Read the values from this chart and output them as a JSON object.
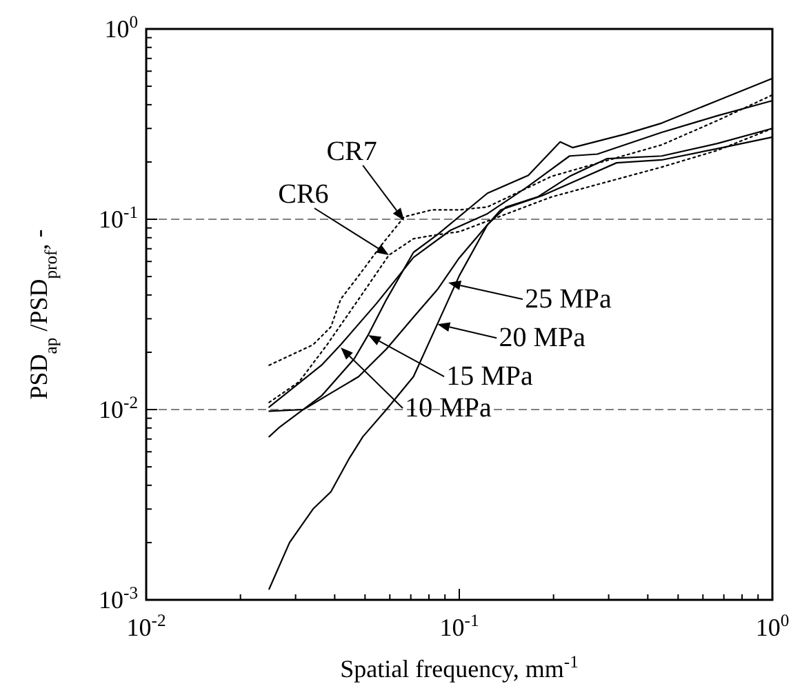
{
  "chart_data": {
    "type": "line",
    "xlabel": "Spatial frequency, mm$^{-1}$",
    "ylabel": "PSD$_{ap}$ /PSD$_{prof}$, -",
    "log": "xy",
    "xlim": [
      0.01,
      1
    ],
    "ylim": [
      0.001,
      1
    ],
    "xticks": [
      {
        "value": 0.01,
        "label": "10$^{-2}$"
      },
      {
        "value": 0.1,
        "label": "10$^{-1}$"
      },
      {
        "value": 1,
        "label": "10$^{0}$"
      }
    ],
    "yticks": [
      {
        "value": 0.001,
        "label": "10$^{-3}$"
      },
      {
        "value": 0.01,
        "label": "10$^{-2}$"
      },
      {
        "value": 0.1,
        "label": "10$^{-1}$"
      },
      {
        "value": 1,
        "label": "10$^{0}$"
      }
    ],
    "grid": false,
    "marker": "none",
    "ref_lines": [
      {
        "axis": "y",
        "value": 0.1,
        "color": "#808080",
        "line_style": "dashed"
      },
      {
        "axis": "y",
        "value": 0.01,
        "color": "#808080",
        "line_style": "dashed"
      }
    ],
    "series": [
      {
        "color": "#000000",
        "line_style": "solid",
        "x": [
          0.0247,
          0.0363,
          0.0418,
          0.0544,
          0.0714,
          0.0937,
          0.123,
          0.166,
          0.225,
          0.276,
          0.443,
          0.667,
          1
        ],
        "values": [
          0.0103,
          0.0171,
          0.0219,
          0.0361,
          0.063,
          0.0875,
          0.107,
          0.149,
          0.215,
          0.22,
          0.286,
          0.35,
          0.42
        ]
      },
      {
        "color": "#000000",
        "line_style": "solid",
        "x": [
          0.0247,
          0.0267,
          0.0363,
          0.0462,
          0.0512,
          0.0585,
          0.0714,
          0.0851,
          0.123,
          0.166,
          0.21,
          0.23,
          0.338,
          0.443,
          0.667,
          1
        ],
        "values": [
          0.0072,
          0.0081,
          0.0118,
          0.0185,
          0.0247,
          0.0378,
          0.067,
          0.083,
          0.137,
          0.17,
          0.255,
          0.238,
          0.28,
          0.32,
          0.42,
          0.55
        ]
      },
      {
        "color": "#000000",
        "line_style": "solid",
        "x": [
          0.0247,
          0.0287,
          0.0341,
          0.0389,
          0.0444,
          0.0492,
          0.0585,
          0.0714,
          0.0851,
          0.1,
          0.123,
          0.141,
          0.178,
          0.225,
          0.296,
          0.443,
          0.667,
          1
        ],
        "values": [
          0.00114,
          0.002,
          0.003,
          0.0037,
          0.0055,
          0.0072,
          0.01,
          0.0149,
          0.0281,
          0.0505,
          0.0935,
          0.116,
          0.131,
          0.168,
          0.208,
          0.215,
          0.25,
          0.3
        ]
      },
      {
        "color": "#000000",
        "line_style": "solid",
        "x": [
          0.0247,
          0.0318,
          0.0389,
          0.0477,
          0.0585,
          0.0714,
          0.0851,
          0.1,
          0.123,
          0.1355,
          0.184,
          0.225,
          0.318,
          0.443,
          0.667,
          1
        ],
        "values": [
          0.0098,
          0.01,
          0.0122,
          0.0149,
          0.0208,
          0.0306,
          0.0427,
          0.0627,
          0.0935,
          0.112,
          0.133,
          0.154,
          0.198,
          0.205,
          0.235,
          0.27
        ]
      },
      {
        "color": "#000000",
        "line_style": "dotted",
        "x": [
          0.0247,
          0.0341,
          0.0389,
          0.0418,
          0.0477,
          0.0567,
          0.0667,
          0.0817,
          0.1,
          0.123,
          0.197,
          0.443,
          0.667,
          1
        ],
        "values": [
          0.0171,
          0.0219,
          0.0272,
          0.038,
          0.0505,
          0.074,
          0.103,
          0.112,
          0.112,
          0.116,
          0.168,
          0.246,
          0.33,
          0.45
        ]
      },
      {
        "color": "#000000",
        "line_style": "dotted",
        "x": [
          0.0247,
          0.0308,
          0.0378,
          0.0477,
          0.0596,
          0.0714,
          0.0851,
          0.1,
          0.197,
          0.443,
          0.667,
          1
        ],
        "values": [
          0.0109,
          0.014,
          0.0219,
          0.038,
          0.0648,
          0.079,
          0.083,
          0.086,
          0.131,
          0.188,
          0.23,
          0.3
        ]
      }
    ],
    "annotations": [
      {
        "text": "CR7",
        "x": 0.0667,
        "y": 0.0984
      },
      {
        "text": "CR6",
        "x": 0.0596,
        "y": 0.0648
      },
      {
        "text": "25 MPa",
        "x": 0.0922,
        "y": 0.0464
      },
      {
        "text": "20 MPa",
        "x": 0.0851,
        "y": 0.0281
      },
      {
        "text": "15 MPa",
        "x": 0.0512,
        "y": 0.0246
      },
      {
        "text": "10 MPa",
        "x": 0.0418,
        "y": 0.0212
      }
    ]
  }
}
